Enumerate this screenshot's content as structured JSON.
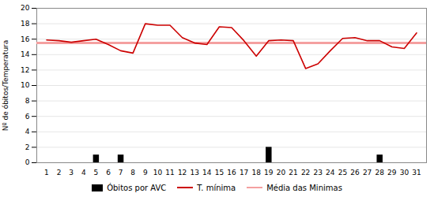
{
  "chart_data": {
    "type": "bar",
    "x": [
      1,
      2,
      3,
      4,
      5,
      6,
      7,
      8,
      9,
      10,
      11,
      12,
      13,
      14,
      15,
      16,
      17,
      18,
      19,
      20,
      21,
      22,
      23,
      24,
      25,
      26,
      27,
      28,
      29,
      30,
      31
    ],
    "xlim": [
      0.2,
      31.8
    ],
    "xticks": [
      1,
      2,
      3,
      4,
      5,
      6,
      7,
      8,
      9,
      10,
      11,
      12,
      13,
      14,
      15,
      16,
      17,
      18,
      19,
      20,
      21,
      22,
      23,
      24,
      25,
      26,
      27,
      28,
      29,
      30,
      31
    ],
    "ylabel": "Nº de óbitos/Temperatura",
    "ylim": [
      0,
      20
    ],
    "yticks": [
      0,
      2,
      4,
      6,
      8,
      10,
      12,
      14,
      16,
      18,
      20
    ],
    "grid": true,
    "series": [
      {
        "name": "Óbitos por AVC",
        "type": "bar",
        "color": "#000000",
        "values": [
          0,
          0,
          0,
          0,
          1,
          0,
          1,
          0,
          0,
          0,
          0,
          0,
          0,
          0,
          0,
          0,
          0,
          0,
          2,
          0,
          0,
          0,
          0,
          0,
          0,
          0,
          0,
          1,
          0,
          0,
          0
        ]
      },
      {
        "name": "T. mínima",
        "type": "line",
        "color": "#cc0000",
        "values": [
          15.9,
          15.8,
          15.6,
          15.8,
          16.0,
          15.3,
          14.5,
          14.2,
          18.0,
          17.8,
          17.8,
          16.2,
          15.5,
          15.3,
          17.6,
          17.5,
          15.8,
          13.8,
          15.8,
          15.9,
          15.8,
          12.2,
          12.8,
          14.5,
          16.1,
          16.2,
          15.8,
          15.8,
          15.0,
          14.8,
          16.8
        ]
      },
      {
        "name": "Média das Minimas",
        "type": "hline",
        "color": "#f4a0a0",
        "values": [
          15.5,
          15.5,
          15.5,
          15.5,
          15.5,
          15.5,
          15.5,
          15.5,
          15.5,
          15.5,
          15.5,
          15.5,
          15.5,
          15.5,
          15.5,
          15.5,
          15.5,
          15.5,
          15.5,
          15.5,
          15.5,
          15.5,
          15.5,
          15.5,
          15.5,
          15.5,
          15.5,
          15.5,
          15.5,
          15.5,
          15.5
        ]
      }
    ]
  }
}
